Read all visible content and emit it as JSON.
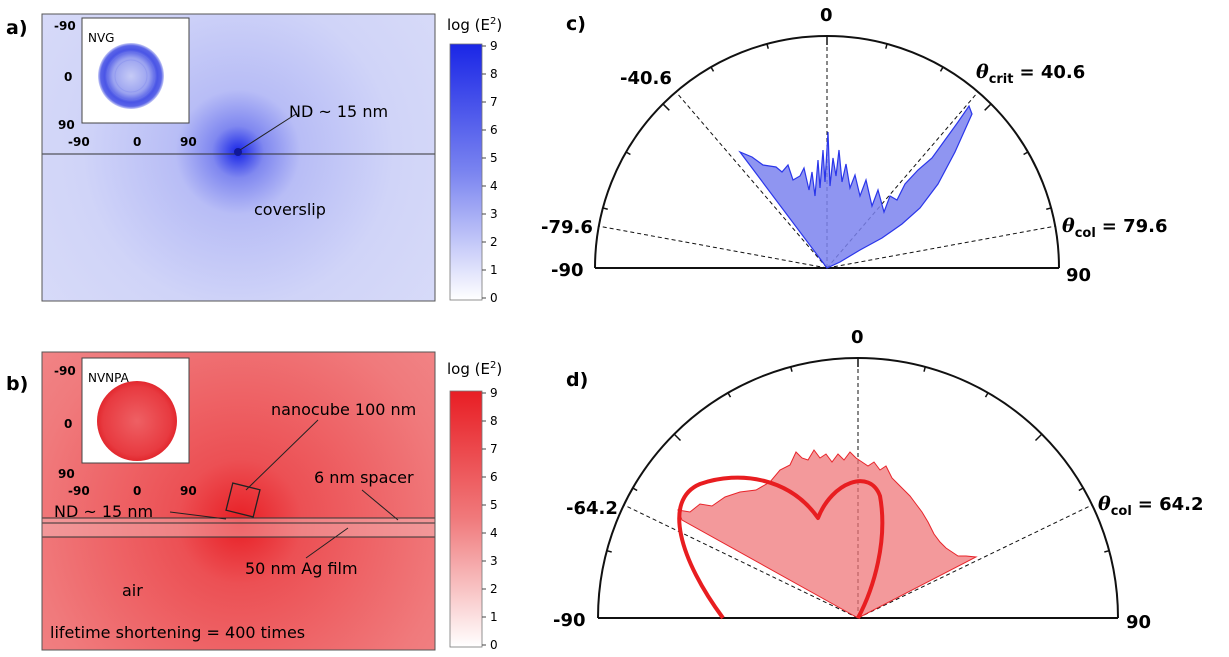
{
  "panel_a": {
    "label": "a)",
    "colorbar_title": "log (E",
    "colorbar_sup": "2",
    "colorbar_close": ")",
    "colorbar_ticks": [
      "9",
      "8",
      "7",
      "6",
      "5",
      "4",
      "3",
      "2",
      "1",
      "0"
    ],
    "inset_label": "NVG",
    "inset_yticks": [
      "-90",
      "0",
      "90"
    ],
    "inset_xticks": [
      "-90",
      "0",
      "90"
    ],
    "nd_label": "ND ~ 15 nm",
    "substrate_label": "coverslip",
    "color": "#2a3cf0"
  },
  "panel_b": {
    "label": "b)",
    "colorbar_title": "log (E",
    "colorbar_sup": "2",
    "colorbar_close": ")",
    "colorbar_ticks": [
      "9",
      "8",
      "7",
      "6",
      "5",
      "4",
      "3",
      "2",
      "1",
      "0"
    ],
    "inset_label": "NVNPA",
    "inset_yticks": [
      "-90",
      "0",
      "90"
    ],
    "inset_xticks": [
      "-90",
      "0",
      "90"
    ],
    "nanocube_label": "nanocube 100 nm",
    "spacer_label": "6 nm spacer",
    "nd_label": "ND ~ 15 nm",
    "film_label": "50 nm Ag film",
    "air_label": "air",
    "lifetime_label": "lifetime shortening = 400 times",
    "color": "#e8242a"
  },
  "panel_c": {
    "label": "c)",
    "top_label": "0",
    "left_labels": [
      "-40.6",
      "-79.6",
      "-90"
    ],
    "right_label_end": "90",
    "theta_crit_prefix": "θ",
    "theta_crit_sub": "crit",
    "theta_crit_value": "= 40.6",
    "theta_col_prefix": "θ",
    "theta_col_sub": "col",
    "theta_col_value": "= 79.6",
    "color": "#2a3cf0"
  },
  "panel_d": {
    "label": "d)",
    "top_label": "0",
    "left_labels": [
      "-64.2",
      "-90"
    ],
    "right_label_end": "90",
    "theta_col_prefix": "θ",
    "theta_col_sub": "col",
    "theta_col_value": "= 64.2",
    "color": "#e8242a"
  }
}
